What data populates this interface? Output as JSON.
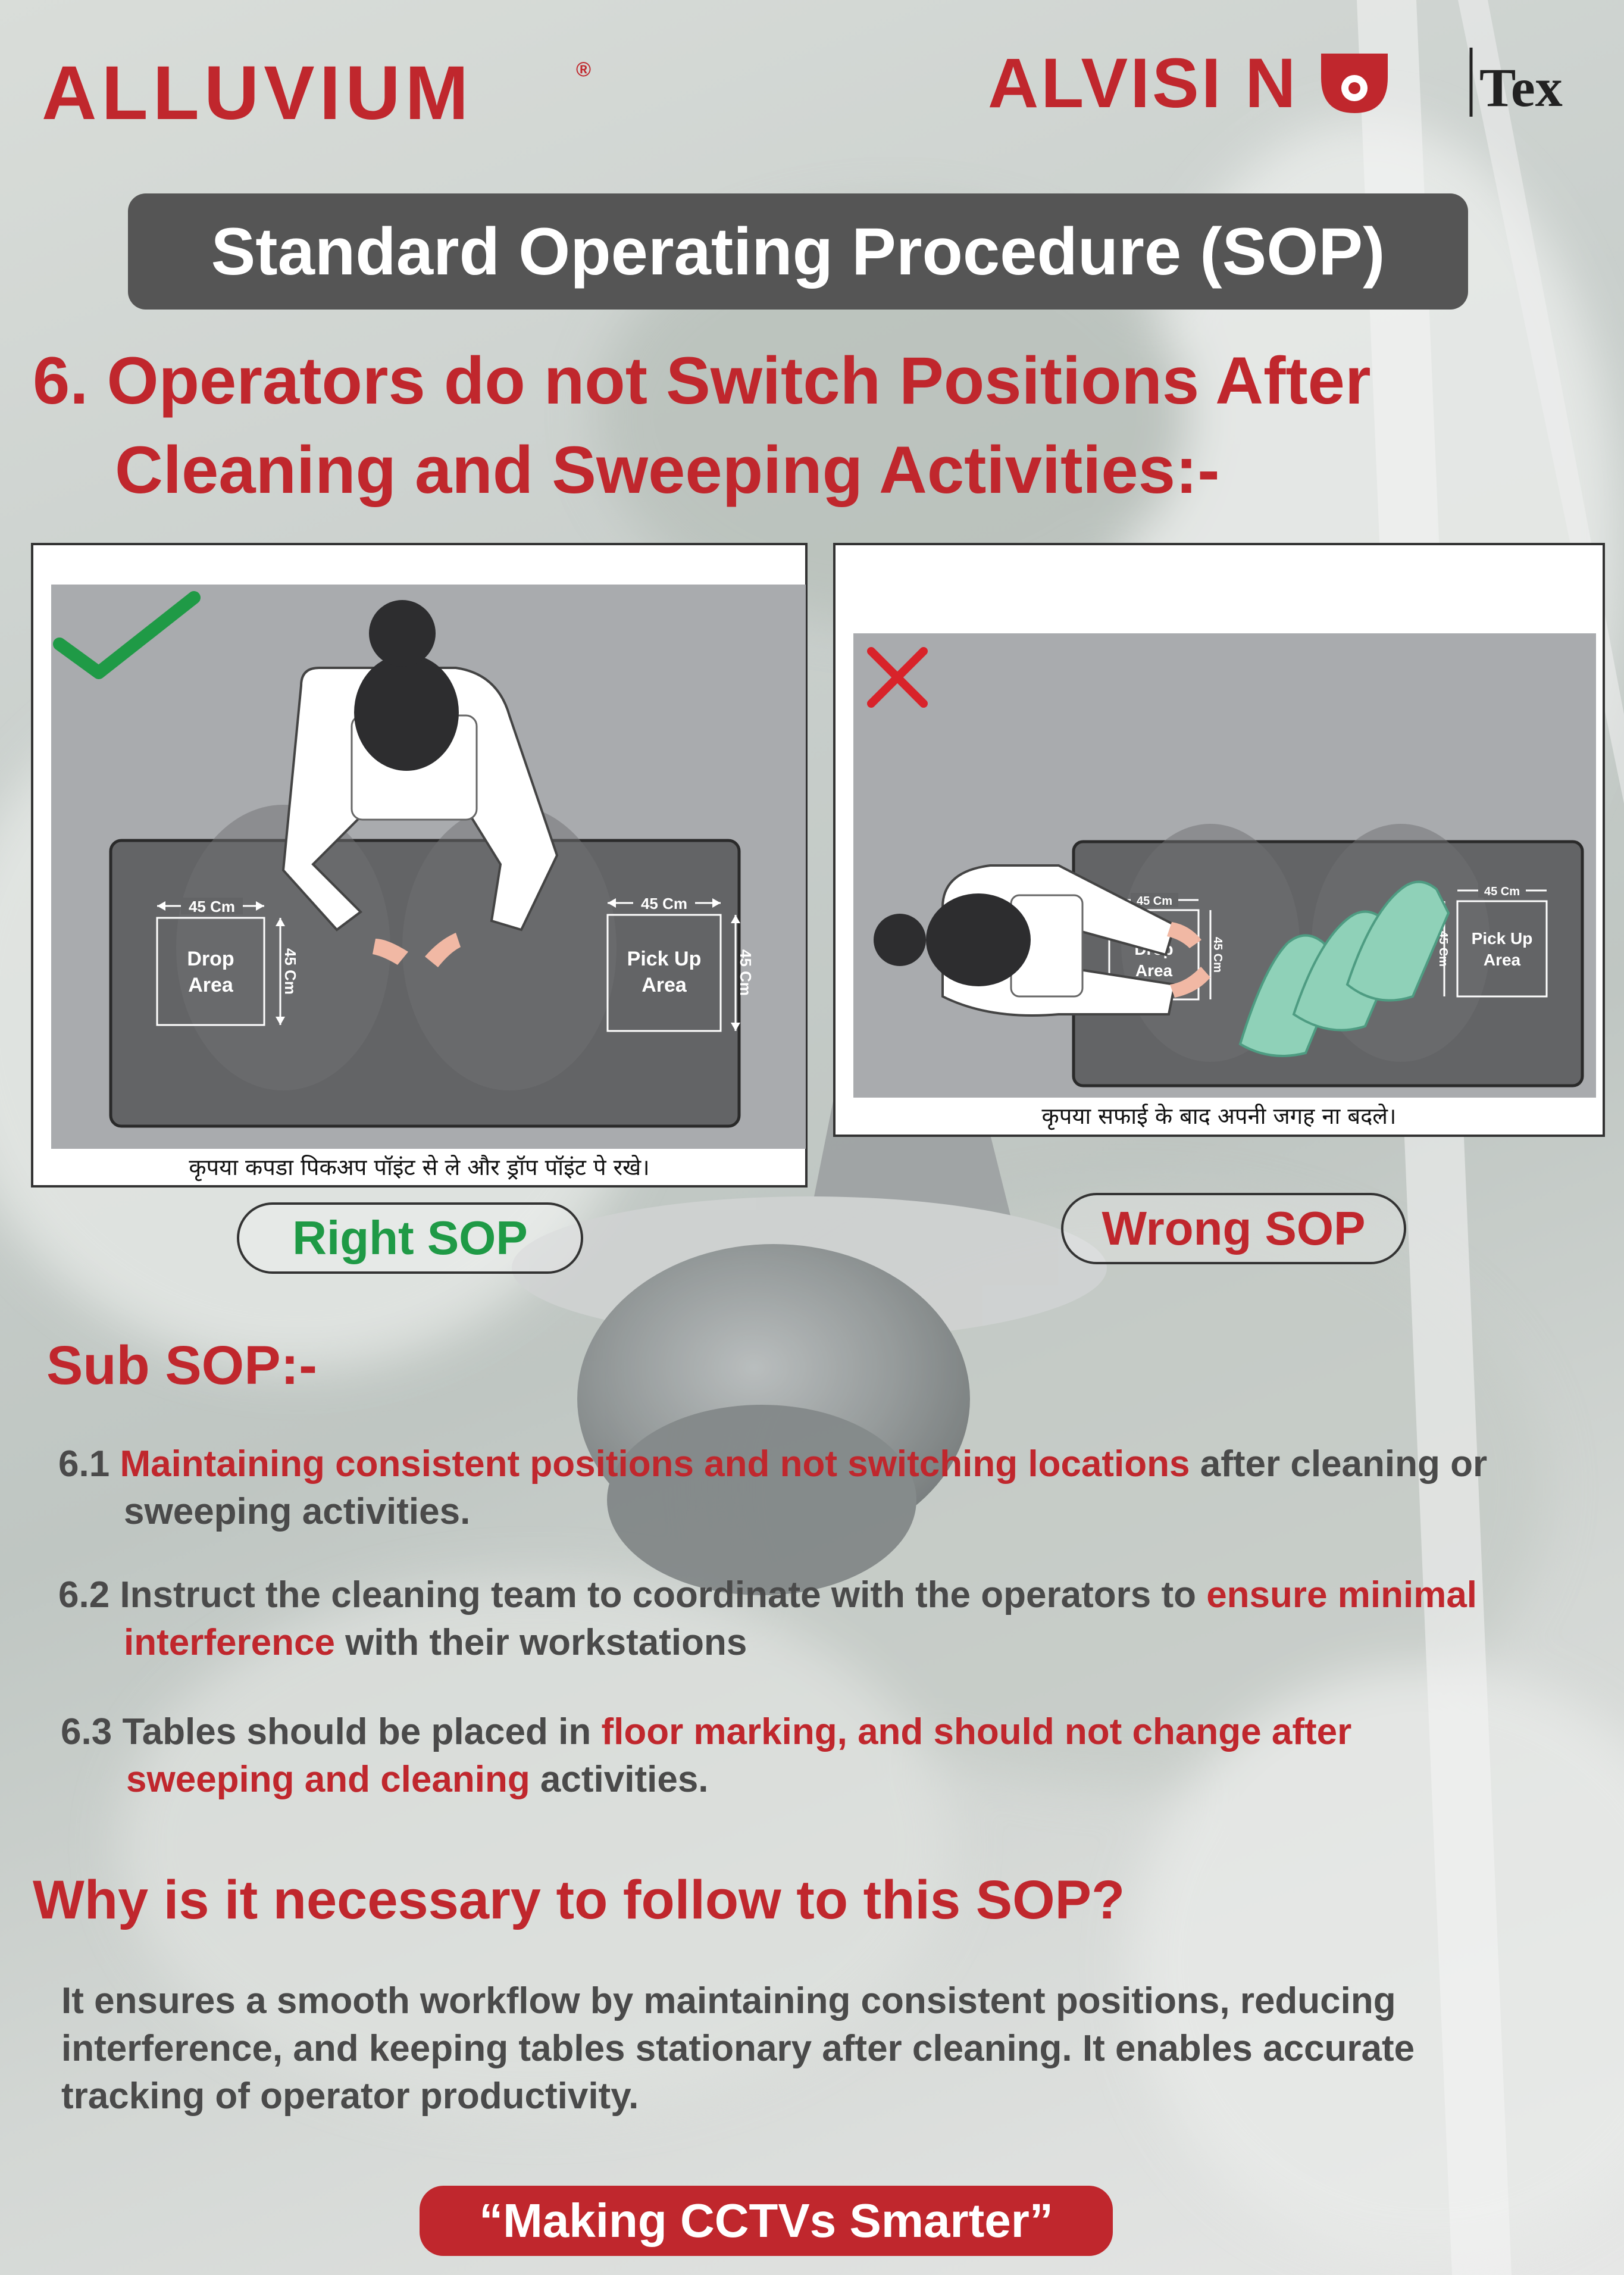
{
  "brand": {
    "left_logo_text": "ALLUVIUM",
    "left_logo_mark": "®",
    "right_logo_text": "ALVISI N",
    "right_logo_suffix": "Tex"
  },
  "header": {
    "title": "Standard Operating Procedure (SOP)"
  },
  "section": {
    "heading_line1": "6. Operators do not Switch Positions After",
    "heading_line2": "Cleaning and Sweeping Activities:-"
  },
  "panels": {
    "right": {
      "dim_label": "45 Cm",
      "drop_line1": "Drop",
      "drop_line2": "Area",
      "pickup_line1": "Pick Up",
      "pickup_line2": "Area",
      "caption": "कृपया कपडा पिकअप पॉइंट से ले और ड्रॉप पॉइंट पे रखे।",
      "label": "Right SOP"
    },
    "wrong": {
      "dim_label": "45 Cm",
      "drop_line1": "Drop",
      "drop_line2": "Area",
      "pickup_line1": "Pick Up",
      "pickup_line2": "Area",
      "caption": "कृपया सफाई के बाद अपनी जगह ना बदले।",
      "label": "Wrong SOP"
    }
  },
  "sub_sop": {
    "heading": "Sub SOP:-",
    "items": [
      {
        "num": "6.1",
        "hl1": "Maintaining consistent positions and not switching locations",
        "t1": " after cleaning or",
        "t2": "sweeping activities."
      },
      {
        "num": "6.2",
        "t1": "Instruct the cleaning team to coordinate with the operators to ",
        "hl1": "ensure minimal",
        "hl2": "interference",
        "t2": " with their workstations"
      },
      {
        "num": "6.3",
        "t1": "Tables should be placed in ",
        "hl1": "floor marking, and should not change after",
        "hl2": "sweeping and cleaning",
        "t2": " activities."
      }
    ]
  },
  "why": {
    "heading": "Why is it necessary to follow to this SOP?",
    "line1": "It ensures a smooth workflow by maintaining consistent positions, reducing",
    "line2": "interference, and keeping tables stationary after cleaning. It enables accurate",
    "line3": "tracking of operator productivity."
  },
  "footer": {
    "tagline": "“Making CCTVs Smarter”"
  },
  "colors": {
    "accent_red": "#c0272d",
    "check_green": "#1f9a46",
    "title_bar": "#555555",
    "text_dark": "#4a4a4a"
  }
}
